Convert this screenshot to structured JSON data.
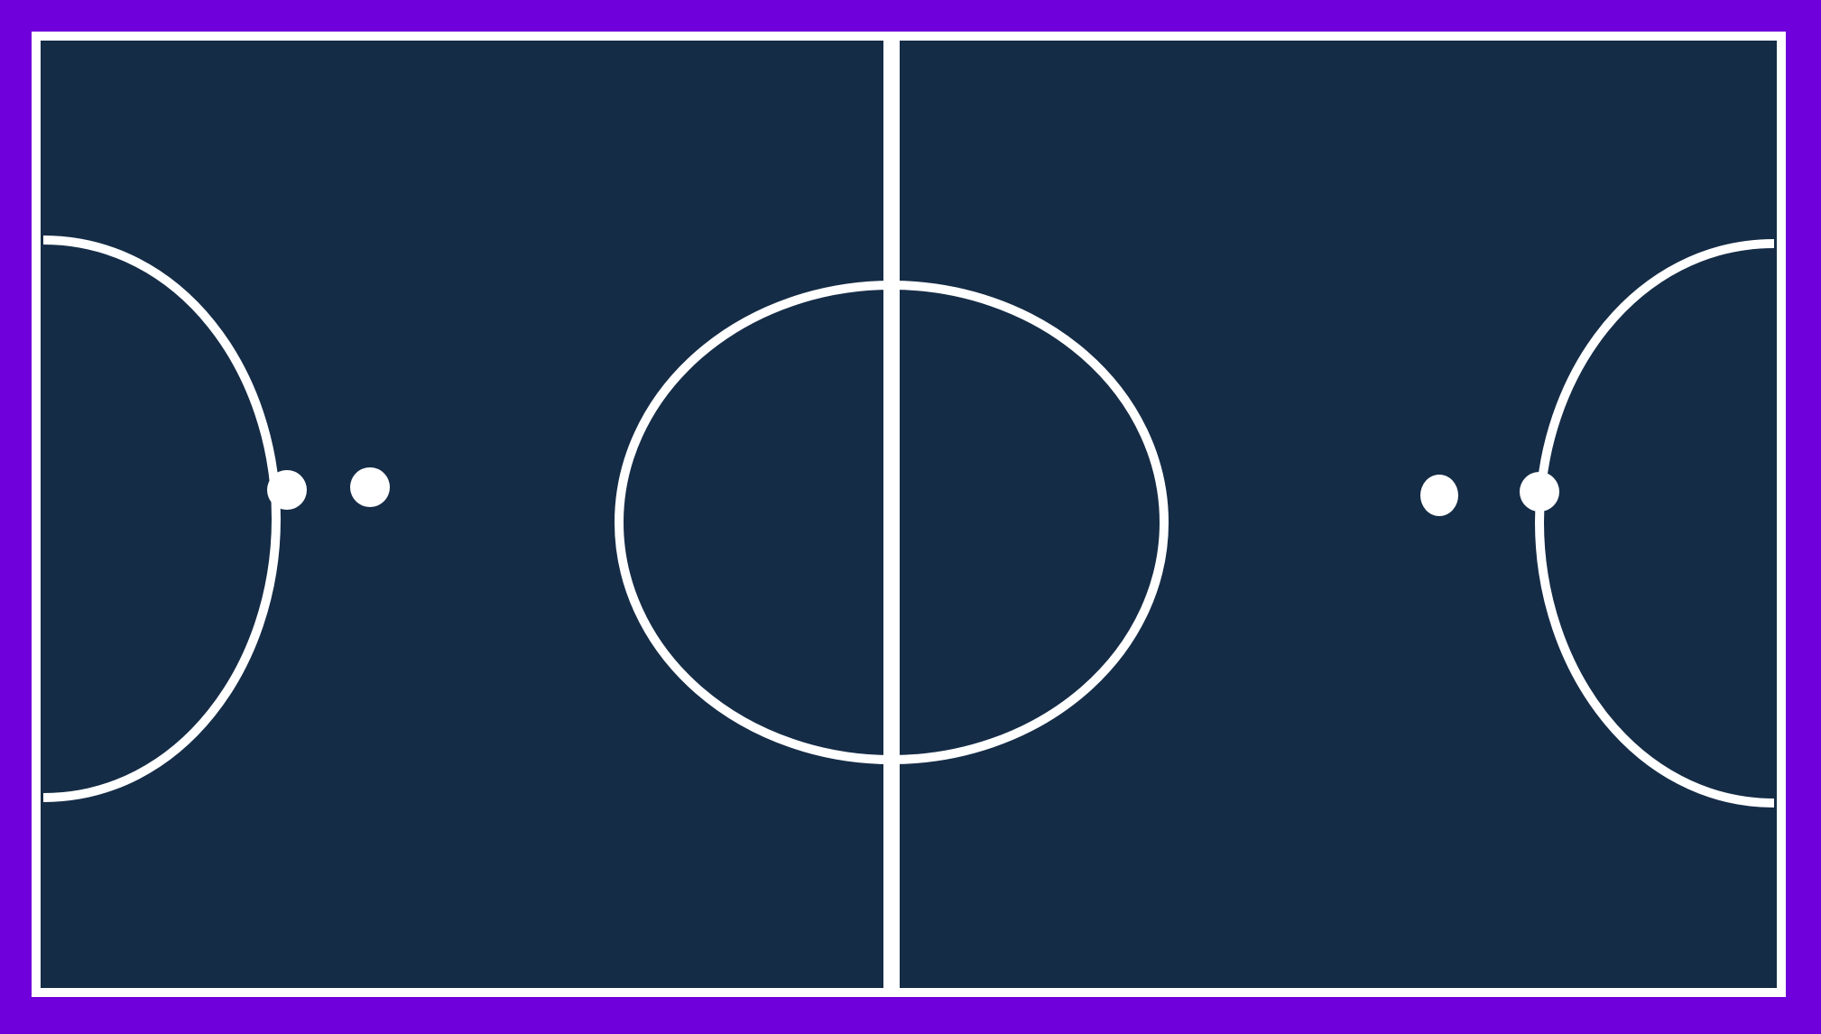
{
  "court": {
    "colors": {
      "surround": "#6f00db",
      "surface": "#152c46",
      "lines": "#ffffff"
    }
  }
}
